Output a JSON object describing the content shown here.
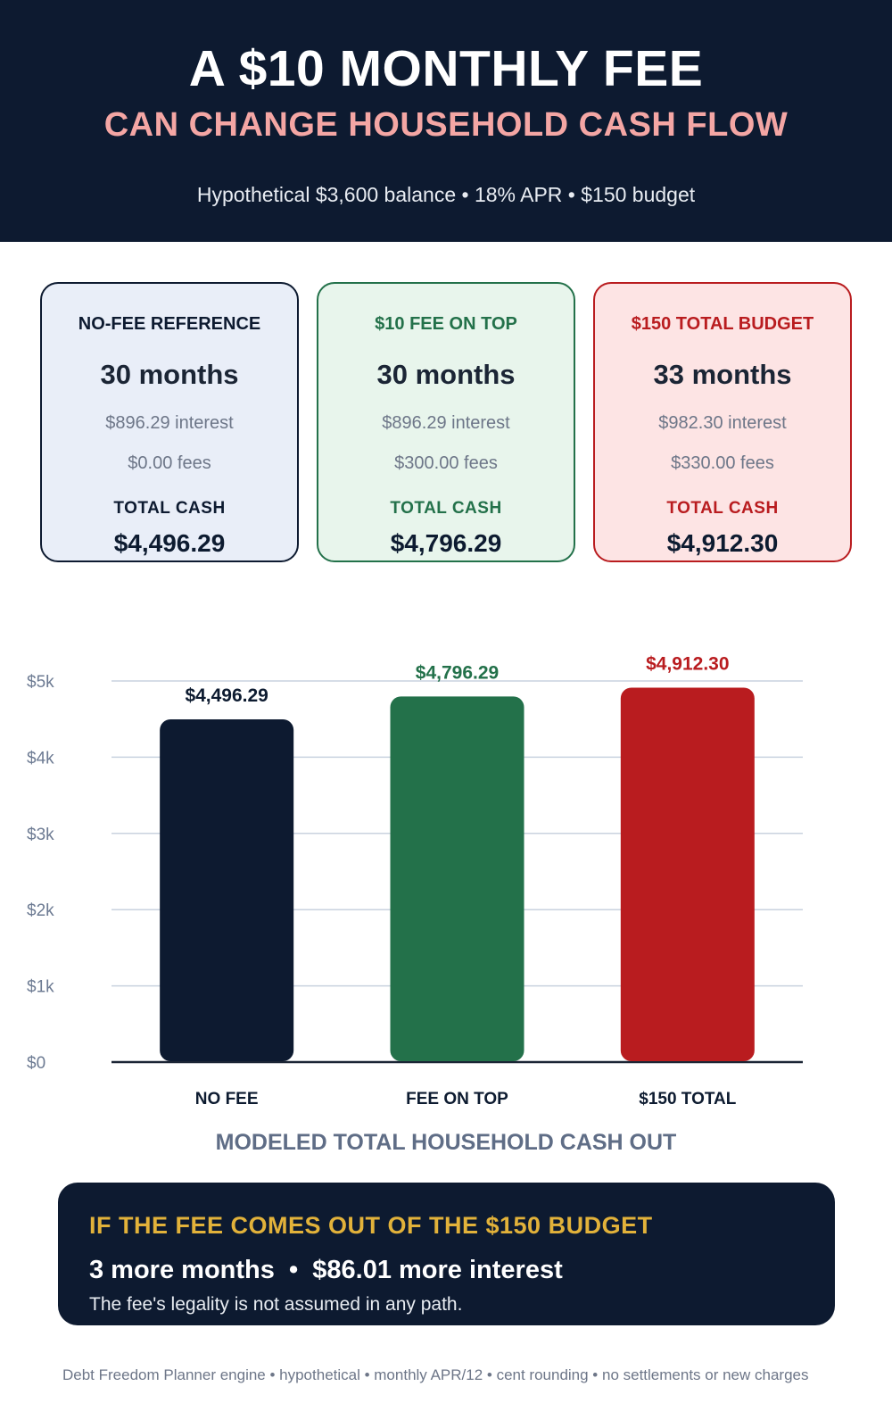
{
  "header": {
    "title": "A $10 MONTHLY FEE",
    "subtitle": "CAN CHANGE HOUSEHOLD CASH FLOW",
    "note": "Hypothetical $3,600 balance • 18% APR • $150 budget"
  },
  "cards": [
    {
      "heading": "NO-FEE REFERENCE",
      "months": "30 months",
      "interest": "$896.29 interest",
      "fees": "$0.00 fees",
      "total_label": "TOTAL CASH",
      "total": "$4,496.29",
      "accent": "#0d1a30",
      "fill": "#e9eef8"
    },
    {
      "heading": "$10 FEE ON TOP",
      "months": "30 months",
      "interest": "$896.29 interest",
      "fees": "$300.00 fees",
      "total_label": "TOTAL CASH",
      "total": "$4,796.29",
      "accent": "#23714a",
      "fill": "#e8f5ec"
    },
    {
      "heading": "$150 TOTAL BUDGET",
      "months": "33 months",
      "interest": "$982.30 interest",
      "fees": "$330.00 fees",
      "total_label": "TOTAL CASH",
      "total": "$4,912.30",
      "accent": "#b91c1f",
      "fill": "#fde4e4"
    }
  ],
  "chart_data": {
    "type": "bar",
    "categories": [
      "NO FEE",
      "FEE ON TOP",
      "$150 TOTAL"
    ],
    "values": [
      4496.29,
      4796.29,
      4912.3
    ],
    "value_labels": [
      "$4,496.29",
      "$4,796.29",
      "$4,912.30"
    ],
    "colors": [
      "#0d1a30",
      "#23714a",
      "#b91c1f"
    ],
    "yticks": [
      0,
      1000,
      2000,
      3000,
      4000,
      5000
    ],
    "ytick_labels": [
      "$0",
      "$1k",
      "$2k",
      "$3k",
      "$4k",
      "$5k"
    ],
    "ylim": [
      0,
      5000
    ],
    "grid": true,
    "xlabel": "MODELED TOTAL HOUSEHOLD CASH OUT"
  },
  "callout": {
    "heading": "IF THE FEE COMES OUT OF THE $150 BUDGET",
    "line": "3 more months  •  $86.01 more interest",
    "note": "The fee's legality is not assumed in any path."
  },
  "footer": "Debt Freedom Planner engine • hypothetical • monthly APR/12 • cent rounding • no settlements or new charges"
}
